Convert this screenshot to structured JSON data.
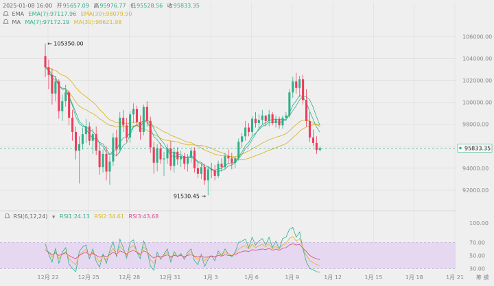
{
  "header": {
    "ohlc": {
      "date": "2025-01-08 16:00",
      "open_label": "开",
      "open": "95657.09",
      "high_label": "高",
      "high": "95976.77",
      "low_label": "低",
      "low": "95528.56",
      "close_label": "收",
      "close": "95833.35"
    },
    "ema": {
      "name": "EMA",
      "ema7_label": "EMA(7):97117.96",
      "ema30_label": "EMA(30):98079.90"
    },
    "ma": {
      "name": "MA",
      "ma7_label": "MA(7):97172.19",
      "ma30_label": "MA(30):98621.98"
    },
    "rsi": {
      "name": "RSI(6,12,24)",
      "rsi1_label": "RSI1:24.13",
      "rsi2_label": "RSI2:34.61",
      "rsi3_label": "RSI3:43.68"
    }
  },
  "colors": {
    "up": "#2eb089",
    "down": "#ee3b5a",
    "ema7": "#2eb089",
    "ema30": "#d9b72b",
    "ma7": "#2eb089",
    "ma30": "#d9b72b",
    "rsi1": "#2eb089",
    "rsi2": "#d9b72b",
    "rsi3": "#d64a8a",
    "rsi_band": "#e4d3f0",
    "price_line": "#2eb089"
  },
  "chart_data": {
    "type": "candlestick",
    "x_ticks": [
      "12月 22",
      "12月 25",
      "12月 28",
      "12月 31",
      "1月 3",
      "1月 6",
      "1月 9",
      "1月 12",
      "1月 15",
      "1月 18",
      "1月 21"
    ],
    "price_axis": {
      "ylim": [
        90500,
        107200
      ],
      "ticks": [
        92000,
        94000,
        96000,
        98000,
        100000,
        102000,
        104000,
        106000
      ]
    },
    "last_price": 95833.35,
    "max_label": "105350.00",
    "max_value": 105350,
    "min_label": "91530.45",
    "min_value": 91530.45,
    "rsi_axis": {
      "ylim": [
        22,
        104
      ],
      "ticks": [
        30,
        50,
        70,
        100
      ],
      "tick_labels": [
        "30.00",
        "50.00",
        "70.00",
        "100.00"
      ],
      "band": [
        30,
        70
      ]
    },
    "candles_start_day": -0.2,
    "candles_step": 0.25,
    "candles": [
      [
        104200,
        105350,
        102300,
        103200
      ],
      [
        103200,
        103900,
        101200,
        102500
      ],
      [
        102500,
        103100,
        99800,
        100800
      ],
      [
        100800,
        102400,
        100100,
        101900
      ],
      [
        101900,
        102100,
        98500,
        99200
      ],
      [
        99200,
        100700,
        98300,
        100100
      ],
      [
        100100,
        101600,
        99600,
        100900
      ],
      [
        100900,
        101100,
        97900,
        98600
      ],
      [
        98600,
        99300,
        96500,
        97300
      ],
      [
        97300,
        97800,
        94800,
        95600
      ],
      [
        95600,
        96900,
        92600,
        96200
      ],
      [
        96200,
        97700,
        95700,
        97100
      ],
      [
        97100,
        98500,
        96300,
        97800
      ],
      [
        97800,
        98200,
        96100,
        96500
      ],
      [
        96500,
        97600,
        95300,
        97100
      ],
      [
        97100,
        97800,
        95200,
        95600
      ],
      [
        95600,
        96400,
        93400,
        94100
      ],
      [
        94100,
        95700,
        93600,
        95300
      ],
      [
        95300,
        96000,
        92900,
        93700
      ],
      [
        93700,
        95100,
        92500,
        94600
      ],
      [
        94600,
        97200,
        94200,
        96800
      ],
      [
        96800,
        97500,
        95100,
        95700
      ],
      [
        95700,
        99100,
        95400,
        98600
      ],
      [
        98600,
        99300,
        97300,
        97900
      ],
      [
        97900,
        98600,
        96400,
        96800
      ],
      [
        96800,
        99200,
        96300,
        98900
      ],
      [
        98900,
        99900,
        98100,
        99400
      ],
      [
        99400,
        99700,
        97900,
        98200
      ],
      [
        98200,
        98800,
        96600,
        97300
      ],
      [
        97300,
        99800,
        97000,
        99600
      ],
      [
        99600,
        100100,
        97800,
        98300
      ],
      [
        98300,
        98700,
        95400,
        95900
      ],
      [
        95900,
        96400,
        93500,
        94500
      ],
      [
        94500,
        96200,
        93700,
        95800
      ],
      [
        95800,
        96300,
        94400,
        94800
      ],
      [
        94800,
        95500,
        93300,
        94900
      ],
      [
        94900,
        96200,
        94400,
        95800
      ],
      [
        95800,
        96500,
        93800,
        94200
      ],
      [
        94200,
        95900,
        93600,
        95500
      ],
      [
        95500,
        95900,
        94300,
        94800
      ],
      [
        94800,
        95600,
        94100,
        95100
      ],
      [
        95100,
        95400,
        93900,
        94400
      ],
      [
        94400,
        95300,
        93700,
        95000
      ],
      [
        95000,
        95900,
        94500,
        95600
      ],
      [
        95600,
        95900,
        93600,
        94000
      ],
      [
        94000,
        94600,
        93100,
        93500
      ],
      [
        93500,
        94400,
        93000,
        94100
      ],
      [
        94100,
        94400,
        92500,
        92900
      ],
      [
        92900,
        94200,
        91530.45,
        93900
      ],
      [
        93900,
        94500,
        93100,
        93800
      ],
      [
        93800,
        94300,
        92900,
        93300
      ],
      [
        93300,
        94700,
        93100,
        94400
      ],
      [
        94400,
        94900,
        93700,
        94100
      ],
      [
        94100,
        95400,
        93900,
        95100
      ],
      [
        95100,
        95700,
        94400,
        94900
      ],
      [
        94900,
        95400,
        93900,
        94500
      ],
      [
        94500,
        95100,
        94000,
        94900
      ],
      [
        94900,
        96700,
        94700,
        96400
      ],
      [
        96400,
        97200,
        95800,
        96900
      ],
      [
        96900,
        98300,
        96500,
        97700
      ],
      [
        97700,
        98100,
        96900,
        97300
      ],
      [
        97300,
        98700,
        97000,
        98500
      ],
      [
        98500,
        99100,
        97700,
        98100
      ],
      [
        98100,
        98900,
        97600,
        98400
      ],
      [
        98400,
        99300,
        98000,
        98800
      ],
      [
        98800,
        98700,
        97800,
        98300
      ],
      [
        98300,
        99300,
        97800,
        98900
      ],
      [
        98900,
        99100,
        97900,
        98100
      ],
      [
        98100,
        98800,
        97700,
        98500
      ],
      [
        98500,
        98700,
        97600,
        97900
      ],
      [
        97900,
        98800,
        97600,
        98600
      ],
      [
        98600,
        99100,
        98300,
        98800
      ],
      [
        98800,
        101200,
        98600,
        100900
      ],
      [
        100900,
        102300,
        100400,
        101900
      ],
      [
        101900,
        102700,
        100800,
        101300
      ],
      [
        101300,
        102400,
        100500,
        102100
      ],
      [
        102100,
        102500,
        99800,
        100200
      ],
      [
        100200,
        101200,
        97800,
        98300
      ],
      [
        98300,
        99100,
        96400,
        96800
      ],
      [
        96800,
        97500,
        96000,
        96300
      ],
      [
        96300,
        96900,
        95300,
        95657.09
      ],
      [
        95657.09,
        95976.77,
        95528.56,
        95833.35
      ]
    ],
    "rsi_series": [
      {
        "name": "RSI1",
        "values": [
          68,
          52,
          40,
          61,
          38,
          55,
          62,
          37,
          30,
          25,
          56,
          63,
          66,
          45,
          60,
          41,
          32,
          52,
          38,
          57,
          71,
          48,
          75,
          62,
          46,
          70,
          74,
          55,
          45,
          72,
          58,
          34,
          27,
          55,
          44,
          52,
          60,
          40,
          56,
          48,
          53,
          44,
          55,
          60,
          42,
          36,
          52,
          33,
          44,
          50,
          42,
          57,
          50,
          60,
          52,
          48,
          55,
          70,
          72,
          75,
          62,
          78,
          66,
          72,
          76,
          66,
          78,
          62,
          72,
          60,
          76,
          78,
          90,
          93,
          78,
          86,
          60,
          40,
          30,
          28,
          25,
          24.13
        ]
      },
      {
        "name": "RSI2",
        "values": [
          62,
          55,
          47,
          56,
          45,
          52,
          56,
          45,
          40,
          36,
          50,
          56,
          59,
          49,
          55,
          46,
          40,
          49,
          43,
          52,
          61,
          51,
          64,
          58,
          50,
          62,
          65,
          56,
          50,
          63,
          57,
          44,
          38,
          50,
          46,
          50,
          55,
          46,
          52,
          49,
          51,
          47,
          52,
          55,
          48,
          44,
          50,
          42,
          47,
          50,
          47,
          53,
          50,
          55,
          52,
          50,
          53,
          60,
          63,
          65,
          60,
          67,
          62,
          65,
          67,
          63,
          68,
          60,
          64,
          60,
          66,
          68,
          76,
          79,
          72,
          76,
          62,
          50,
          42,
          39,
          36,
          34.61
        ]
      },
      {
        "name": "RSI3",
        "values": [
          58,
          55,
          51,
          54,
          50,
          52,
          54,
          50,
          47,
          45,
          50,
          53,
          55,
          51,
          53,
          50,
          47,
          50,
          48,
          51,
          55,
          52,
          57,
          55,
          52,
          56,
          58,
          55,
          52,
          57,
          55,
          50,
          46,
          49,
          48,
          49,
          51,
          48,
          50,
          49,
          50,
          48,
          50,
          51,
          49,
          48,
          49,
          47,
          48,
          49,
          48,
          50,
          49,
          51,
          50,
          50,
          51,
          54,
          56,
          57,
          56,
          59,
          58,
          59,
          60,
          59,
          61,
          58,
          60,
          58,
          61,
          62,
          66,
          68,
          66,
          67,
          61,
          56,
          50,
          47,
          45,
          43.68
        ]
      }
    ]
  }
}
